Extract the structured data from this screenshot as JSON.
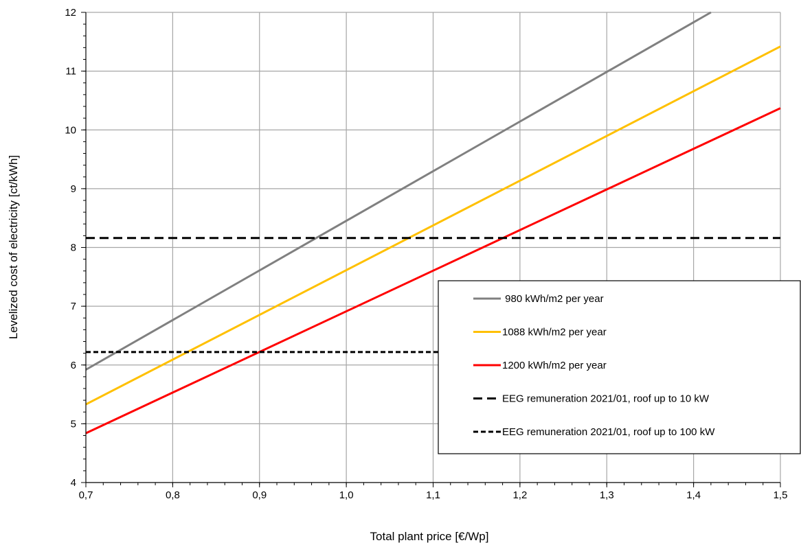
{
  "chart_data": {
    "type": "line",
    "xlabel": "Total plant price [€/Wp]",
    "ylabel": "Levelized cost of electricity  [ct/kWh]",
    "xlim": [
      0.7,
      1.5
    ],
    "ylim": [
      4,
      12
    ],
    "x_ticks": [
      "0,7",
      "0,8",
      "0,9",
      "1,0",
      "1,1",
      "1,2",
      "1,3",
      "1,4",
      "1,5"
    ],
    "y_ticks": [
      "4",
      "5",
      "6",
      "7",
      "8",
      "9",
      "10",
      "11",
      "12"
    ],
    "grid": true,
    "legend_position": "lower-right",
    "series": [
      {
        "name": " 980 kWh/m2 per year",
        "color": "#808080",
        "style": "solid",
        "x": [
          0.7,
          1.42
        ],
        "y": [
          5.92,
          12.0
        ]
      },
      {
        "name": "1088 kWh/m2 per year",
        "color": "#FFC000",
        "style": "solid",
        "x": [
          0.7,
          1.5
        ],
        "y": [
          5.33,
          11.42
        ]
      },
      {
        "name": "1200 kWh/m2 per year",
        "color": "#FF0000",
        "style": "solid",
        "x": [
          0.7,
          1.5
        ],
        "y": [
          4.84,
          10.37
        ]
      },
      {
        "name": "EEG remuneration 2021/01, roof up to 10 kW",
        "color": "#000000",
        "style": "dashed",
        "x": [
          0.7,
          1.5
        ],
        "y": [
          8.16,
          8.16
        ]
      },
      {
        "name": "EEG remuneration 2021/01, roof up to 100 kW",
        "color": "#000000",
        "style": "dotted",
        "x": [
          0.7,
          1.5
        ],
        "y": [
          6.22,
          6.22
        ]
      }
    ]
  }
}
